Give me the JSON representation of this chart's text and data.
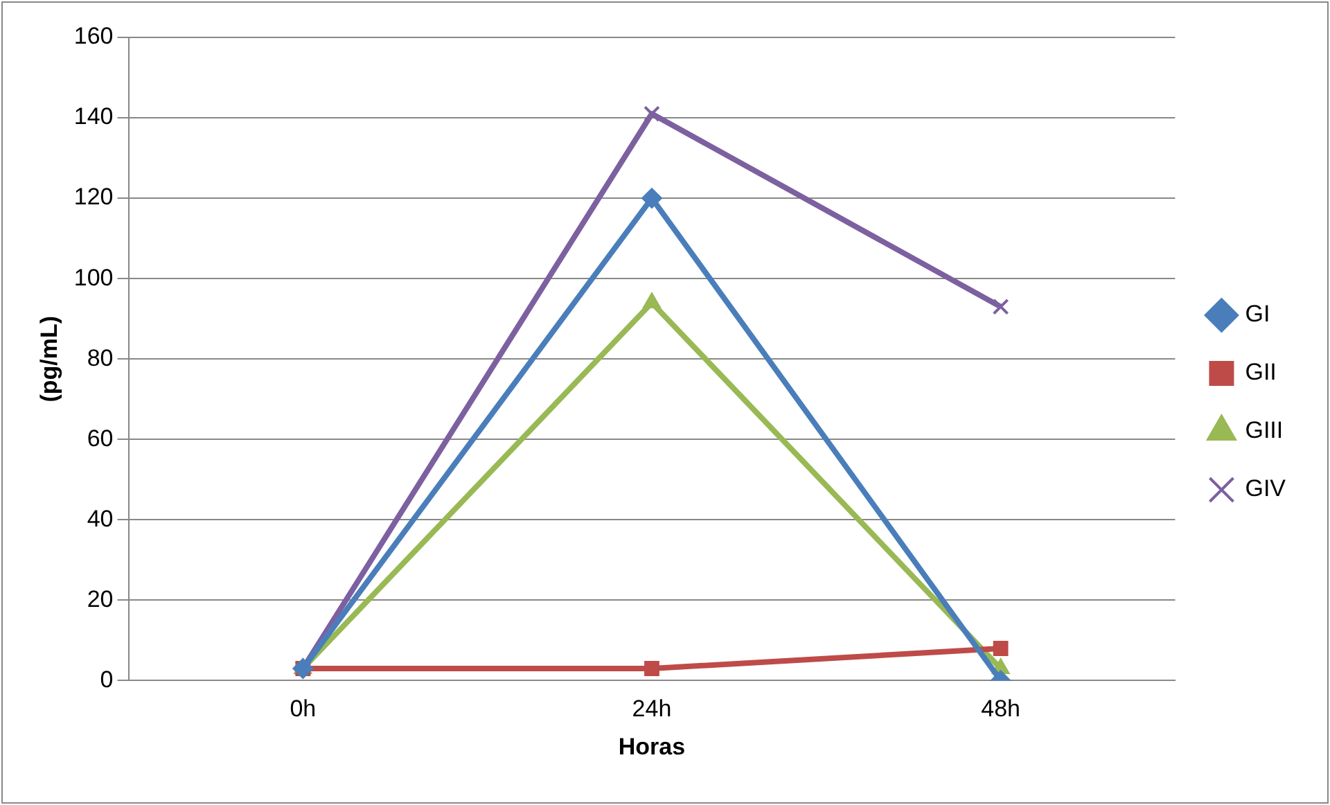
{
  "chart_data": {
    "type": "line",
    "xlabel": "Horas",
    "ylabel": "(pg/mL)",
    "categories": [
      "0h",
      "24h",
      "48h"
    ],
    "series": [
      {
        "name": "GI",
        "color": "#4a7ebb",
        "marker": "diamond",
        "values": [
          3,
          120,
          0
        ]
      },
      {
        "name": "GII",
        "color": "#be4b48",
        "marker": "square",
        "values": [
          3,
          3,
          8
        ]
      },
      {
        "name": "GIII",
        "color": "#98b954",
        "marker": "triangle",
        "values": [
          3,
          94,
          3
        ]
      },
      {
        "name": "GIV",
        "color": "#7d60a0",
        "marker": "cross",
        "values": [
          3,
          141,
          93
        ]
      }
    ],
    "ylim": [
      0,
      160
    ],
    "yticks": [
      0,
      20,
      40,
      60,
      80,
      100,
      120,
      140,
      160
    ],
    "grid": "y",
    "legend": "right"
  }
}
